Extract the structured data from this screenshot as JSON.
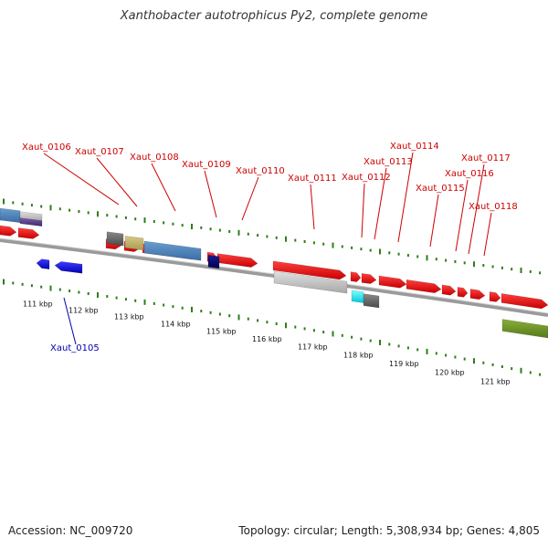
{
  "title": "Xanthobacter autotrophicus Py2, complete genome",
  "footer": {
    "accession": "Accession: NC_009720",
    "topology": "Topology: circular; Length: 5,308,934 bp; Genes: 4,805"
  },
  "colors": {
    "forward_gene": "#ee0000",
    "reverse_gene": "#0000ee",
    "label_forward": "#cc0000",
    "label_reverse": "#0000aa",
    "backbone": "#888888",
    "dotted_track": "#2e7d1a"
  },
  "tick_labels": [
    "111 kbp",
    "112 kbp",
    "113 kbp",
    "114 kbp",
    "115 kbp",
    "116 kbp",
    "117 kbp",
    "118 kbp",
    "119 kbp",
    "120 kbp",
    "121 kbp"
  ],
  "gene_labels": [
    "Xaut_0105",
    "Xaut_0106",
    "Xaut_0107",
    "Xaut_0108",
    "Xaut_0109",
    "Xaut_0110",
    "Xaut_0111",
    "Xaut_0112",
    "Xaut_0113",
    "Xaut_0114",
    "Xaut_0115",
    "Xaut_0116",
    "Xaut_0117",
    "Xaut_0118"
  ]
}
